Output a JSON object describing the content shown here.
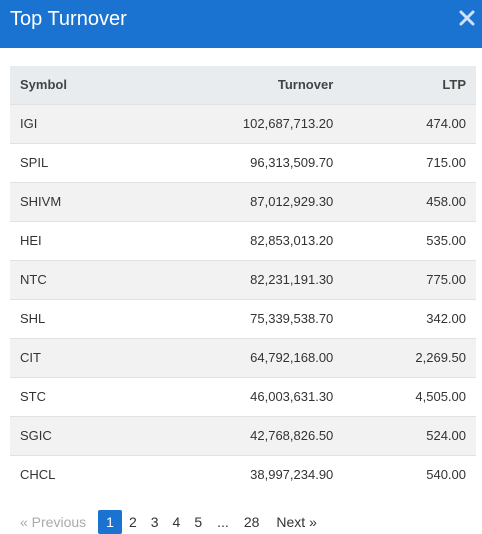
{
  "modal": {
    "title": "Top Turnover",
    "close_glyph": "✖"
  },
  "table": {
    "headers": [
      "Symbol",
      "Turnover",
      "LTP"
    ],
    "rows": [
      {
        "symbol": "IGI",
        "turnover": "102,687,713.20",
        "ltp": "474.00"
      },
      {
        "symbol": "SPIL",
        "turnover": "96,313,509.70",
        "ltp": "715.00"
      },
      {
        "symbol": "SHIVM",
        "turnover": "87,012,929.30",
        "ltp": "458.00"
      },
      {
        "symbol": "HEI",
        "turnover": "82,853,013.20",
        "ltp": "535.00"
      },
      {
        "symbol": "NTC",
        "turnover": "82,231,191.30",
        "ltp": "775.00"
      },
      {
        "symbol": "SHL",
        "turnover": "75,339,538.70",
        "ltp": "342.00"
      },
      {
        "symbol": "CIT",
        "turnover": "64,792,168.00",
        "ltp": "2,269.50"
      },
      {
        "symbol": "STC",
        "turnover": "46,003,631.30",
        "ltp": "4,505.00"
      },
      {
        "symbol": "SGIC",
        "turnover": "42,768,826.50",
        "ltp": "524.00"
      },
      {
        "symbol": "CHCL",
        "turnover": "38,997,234.90",
        "ltp": "540.00"
      }
    ]
  },
  "pagination": {
    "previous": "« Previous",
    "pages": [
      "1",
      "2",
      "3",
      "4",
      "5"
    ],
    "ellipsis": "...",
    "last": "28",
    "next": "Next »",
    "active_page": "1"
  },
  "colors": {
    "accent": "#1a73d1"
  }
}
